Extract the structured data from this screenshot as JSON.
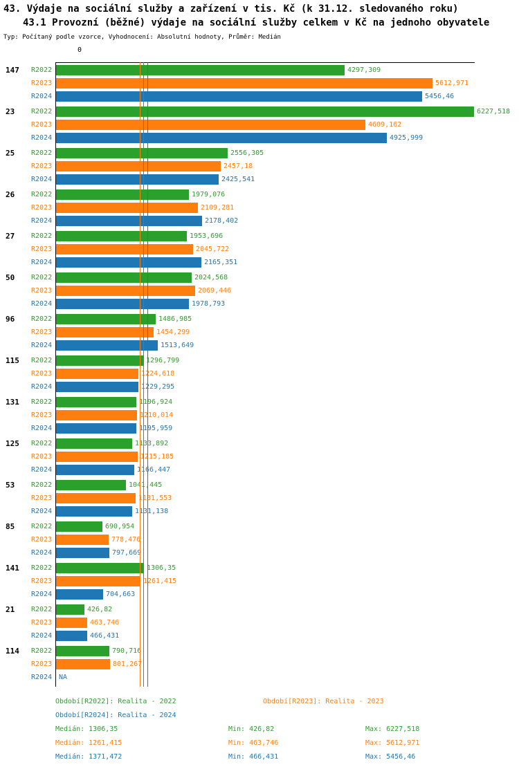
{
  "header": {
    "title_line1": "43. Výdaje na sociální služby a zařízení v tis. Kč (k 31.12. sledovaného roku)",
    "title_line2": "43.1 Provozní (běžné) výdaje na sociální služby celkem v Kč na jednoho obyvatele",
    "subtitle": "Typ: Počítaný podle vzorce, Vyhodnocení: Absolutní hodnoty, Průměr: Medián"
  },
  "colors": {
    "r2022": "#2ca02c",
    "r2023": "#ff7f0e",
    "r2024": "#1f77b4"
  },
  "chart_data": {
    "type": "bar",
    "orientation": "horizontal",
    "title": "43. Výdaje na sociální služby a zařízení v tis. Kč (k 31.12. sledovaného roku)",
    "subtitle": "43.1 Provozní (běžné) výdaje na sociální služby celkem v Kč na jednoho obyvatele",
    "xlim": [
      0,
      6227.518
    ],
    "x_tick_labels": [
      "0"
    ],
    "grid": false,
    "legend_position": "bottom",
    "series_labels": [
      "R2022",
      "R2023",
      "R2024"
    ],
    "series_full_names": [
      "Realita - 2022",
      "Realita - 2023",
      "Realita - 2024"
    ],
    "groups": [
      {
        "label": "147",
        "values": [
          4297.309,
          5612.971,
          5456.46
        ],
        "display": [
          "4297,309",
          "5612,971",
          "5456,46"
        ]
      },
      {
        "label": "23",
        "values": [
          6227.518,
          4609.162,
          4925.999
        ],
        "display": [
          "6227,518",
          "4609,162",
          "4925,999"
        ]
      },
      {
        "label": "25",
        "values": [
          2556.305,
          2457.18,
          2425.541
        ],
        "display": [
          "2556,305",
          "2457,18",
          "2425,541"
        ]
      },
      {
        "label": "26",
        "values": [
          1979.076,
          2109.281,
          2178.402
        ],
        "display": [
          "1979,076",
          "2109,281",
          "2178,402"
        ]
      },
      {
        "label": "27",
        "values": [
          1953.696,
          2045.722,
          2165.351
        ],
        "display": [
          "1953,696",
          "2045,722",
          "2165,351"
        ]
      },
      {
        "label": "50",
        "values": [
          2024.568,
          2069.446,
          1978.793
        ],
        "display": [
          "2024,568",
          "2069,446",
          "1978,793"
        ]
      },
      {
        "label": "96",
        "values": [
          1486.985,
          1454.299,
          1513.649
        ],
        "display": [
          "1486,985",
          "1454,299",
          "1513,649"
        ]
      },
      {
        "label": "115",
        "values": [
          1296.799,
          1224.618,
          1229.295
        ],
        "display": [
          "1296,799",
          "1224,618",
          "1229,295"
        ]
      },
      {
        "label": "131",
        "values": [
          1196.924,
          1210.014,
          1195.959
        ],
        "display": [
          "1196,924",
          "1210,014",
          "1195,959"
        ]
      },
      {
        "label": "125",
        "values": [
          1133.892,
          1215.185,
          1166.447
        ],
        "display": [
          "1133,892",
          "1215,185",
          "1166,447"
        ]
      },
      {
        "label": "53",
        "values": [
          1041.445,
          1181.553,
          1131.138
        ],
        "display": [
          "1041,445",
          "1181,553",
          "1131,138"
        ]
      },
      {
        "label": "85",
        "values": [
          690.954,
          778.476,
          797.669
        ],
        "display": [
          "690,954",
          "778,476",
          "797,669"
        ]
      },
      {
        "label": "141",
        "values": [
          1306.35,
          1261.415,
          704.663
        ],
        "display": [
          "1306,35",
          "1261,415",
          "704,663"
        ]
      },
      {
        "label": "21",
        "values": [
          426.82,
          463.746,
          466.431
        ],
        "display": [
          "426,82",
          "463,746",
          "466,431"
        ]
      },
      {
        "label": "114",
        "values": [
          790.716,
          801.267,
          null
        ],
        "display": [
          "790,716",
          "801,267",
          "NA"
        ]
      }
    ],
    "medians": {
      "r2022": 1306.35,
      "r2023": 1261.415,
      "r2024": 1371.472
    }
  },
  "legend": {
    "r2022": "Období[R2022]: Realita - 2022",
    "r2023": "Období[R2023]: Realita - 2023",
    "r2024": "Období[R2024]: Realita - 2024"
  },
  "stats": {
    "r2022": {
      "median": "Medián: 1306,35",
      "min": "Min: 426,82",
      "max": "Max: 6227,518"
    },
    "r2023": {
      "median": "Medián: 1261,415",
      "min": "Min: 463,746",
      "max": "Max: 5612,971"
    },
    "r2024": {
      "median": "Medián: 1371,472",
      "min": "Min: 466,431",
      "max": "Max: 5456,46"
    }
  }
}
